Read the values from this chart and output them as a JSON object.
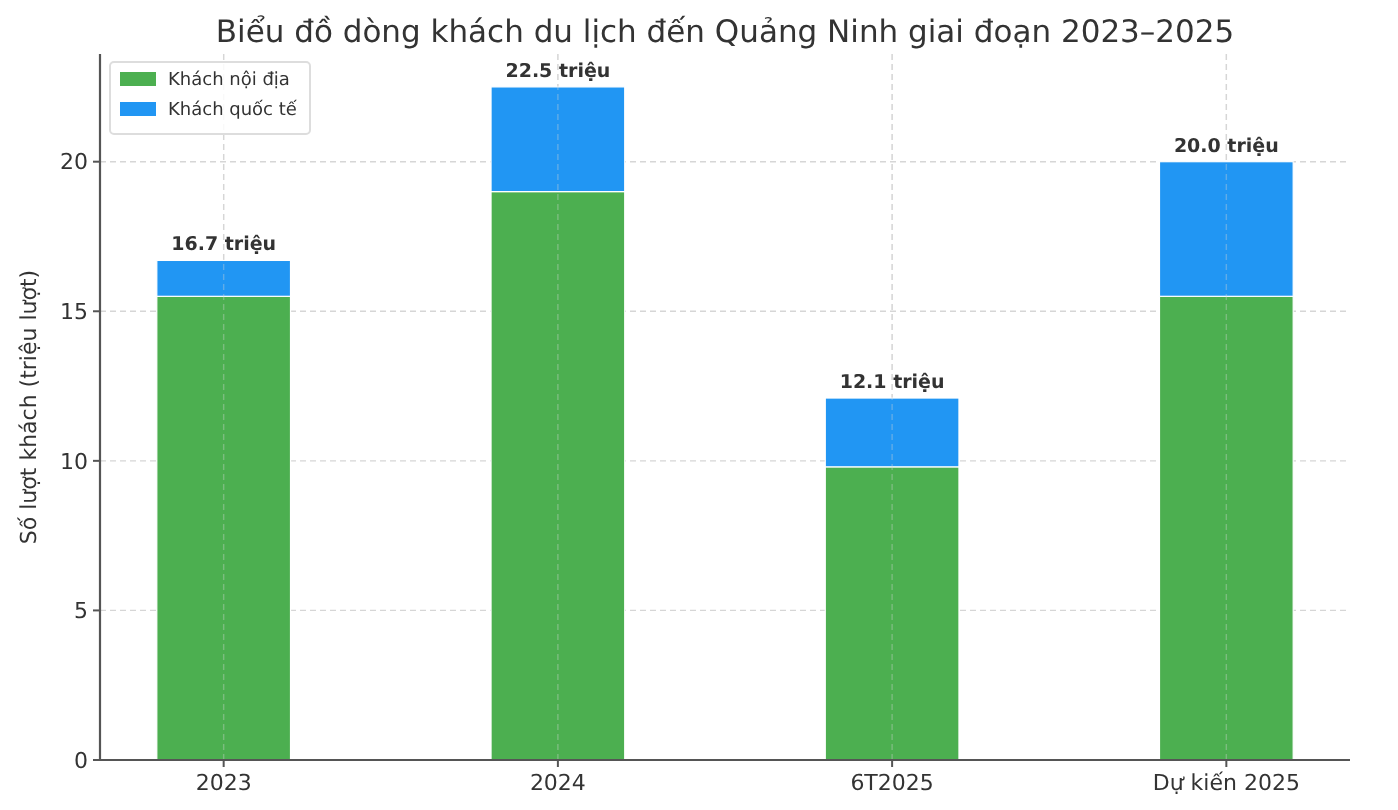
{
  "chart_data": {
    "type": "bar",
    "title": "Biểu đồ dòng khách du lịch đến Quảng Ninh giai đoạn 2023–2025",
    "ylabel": "Số lượt khách (triệu lượt)",
    "categories": [
      "2023",
      "2024",
      "6T2025",
      "Dự kiến 2025"
    ],
    "series": [
      {
        "name": "Khách nội địa",
        "color": "#4caf50",
        "values": [
          15.5,
          19.0,
          9.8,
          15.5
        ]
      },
      {
        "name": "Khách quốc tế",
        "color": "#2196f3",
        "values": [
          1.2,
          3.5,
          2.3,
          4.5
        ]
      }
    ],
    "stacked": true,
    "totals": [
      "16.7 triệu",
      "22.5 triệu",
      "12.1 triệu",
      "20.0 triệu"
    ],
    "ylim": [
      0,
      23.6
    ],
    "yticks": [
      0,
      5,
      10,
      15,
      20
    ],
    "grid": true,
    "legend": "top left"
  }
}
